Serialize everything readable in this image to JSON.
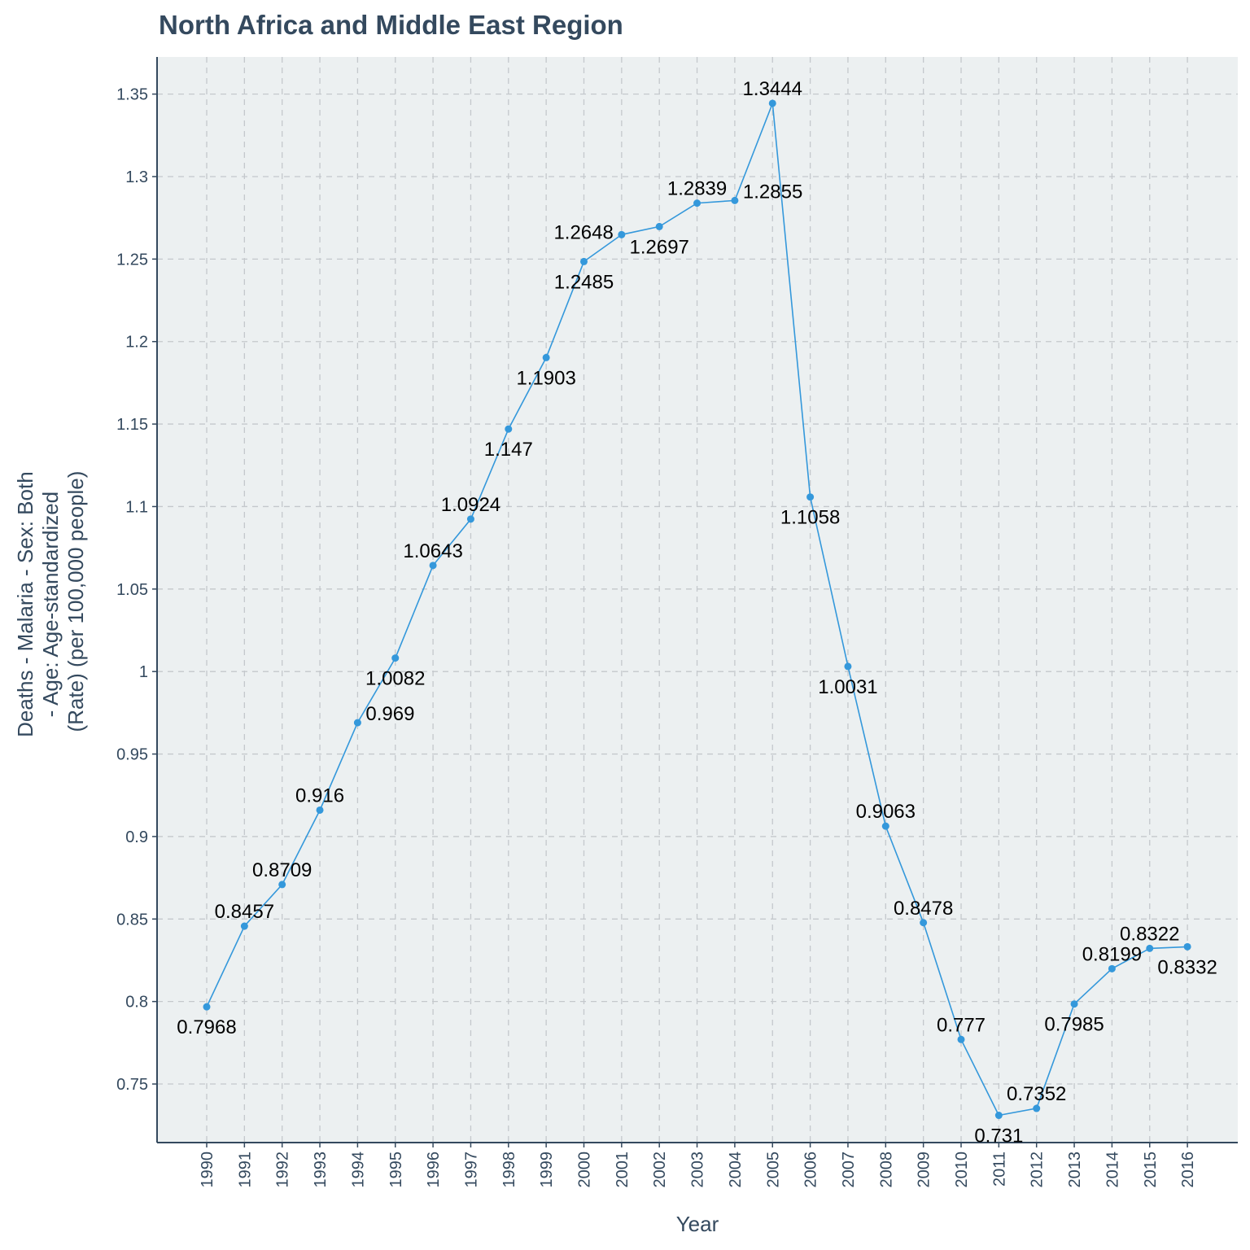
{
  "chart_data": {
    "type": "line",
    "title": "North Africa and Middle East Region",
    "xlabel": "Year",
    "ylabel": [
      "Deaths - Malaria - Sex: Both",
      "- Age: Age-standardized",
      "(Rate) (per 100,000 people)"
    ],
    "categories": [
      "1990",
      "1991",
      "1992",
      "1993",
      "1994",
      "1995",
      "1996",
      "1997",
      "1998",
      "1999",
      "2000",
      "2001",
      "2002",
      "2003",
      "2004",
      "2005",
      "2006",
      "2007",
      "2008",
      "2009",
      "2010",
      "2011",
      "2012",
      "2013",
      "2014",
      "2015",
      "2016"
    ],
    "values": [
      0.7968,
      0.8457,
      0.8709,
      0.916,
      0.969,
      1.0082,
      1.0643,
      1.0924,
      1.147,
      1.1903,
      1.2485,
      1.2648,
      1.2697,
      1.2839,
      1.2855,
      1.3444,
      1.1058,
      1.0031,
      0.9063,
      0.8478,
      0.777,
      0.731,
      0.7352,
      0.7985,
      0.8199,
      0.8322,
      0.8332
    ],
    "data_labels": [
      "0.7968",
      "0.8457",
      "0.8709",
      "0.916",
      "0.969",
      "1.0082",
      "1.0643",
      "1.0924",
      "1.147",
      "1.1903",
      "1.2485",
      "1.2648",
      "1.2697",
      "1.2839",
      "1.2855",
      "1.3444",
      "1.1058",
      "1.0031",
      "0.9063",
      "0.8478",
      "0.777",
      "0.731",
      "0.7352",
      "0.7985",
      "0.8199",
      "0.8322",
      "0.8332"
    ],
    "label_side": [
      "below",
      "above",
      "above",
      "above",
      "right",
      "below",
      "above",
      "above",
      "below",
      "below",
      "below",
      "left",
      "below",
      "above",
      "right",
      "above",
      "below",
      "below",
      "above",
      "above",
      "above",
      "below",
      "above",
      "below",
      "above",
      "above",
      "below"
    ],
    "yticks": [
      0.75,
      0.8,
      0.85,
      0.9,
      0.95,
      1,
      1.05,
      1.1,
      1.15,
      1.2,
      1.25,
      1.3,
      1.35
    ],
    "ytick_labels": [
      "0.75",
      "0.8",
      "0.85",
      "0.9",
      "0.95",
      "1",
      "1.05",
      "1.1",
      "1.15",
      "1.2",
      "1.25",
      "1.3",
      "1.35"
    ],
    "ylim": [
      0.7145,
      1.3725
    ],
    "grid": true,
    "colors": {
      "line": "#3498db",
      "panel": "#ecf0f1",
      "text": "#34495e",
      "grid": "#c4c8cc"
    }
  }
}
